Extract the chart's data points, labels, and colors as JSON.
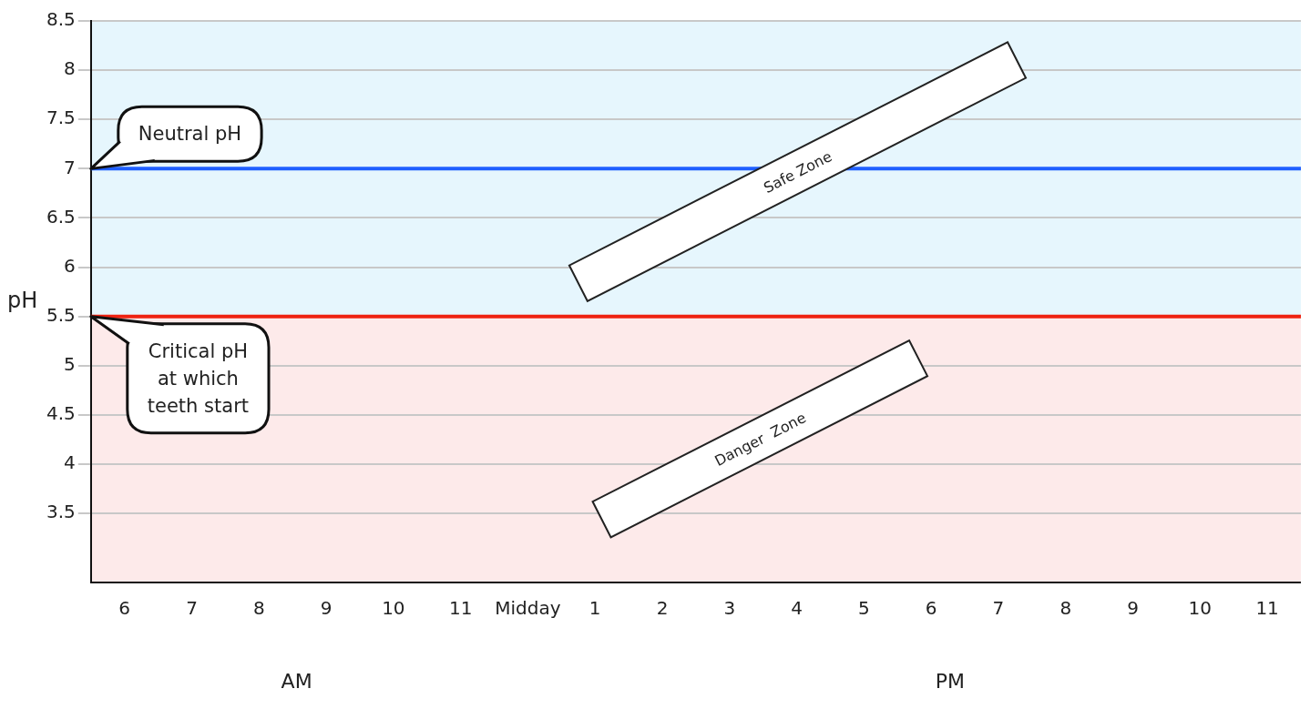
{
  "chart_data": {
    "type": "line",
    "ylabel": "pH",
    "categories": [
      "6",
      "7",
      "8",
      "9",
      "10",
      "11",
      "Midday",
      "1",
      "2",
      "3",
      "4",
      "5",
      "6",
      "7",
      "8",
      "9",
      "10",
      "11"
    ],
    "ylim": [
      2.8,
      8.5
    ],
    "yticks": [
      3.5,
      4,
      4.5,
      5,
      5.5,
      6,
      6.5,
      7,
      7.5,
      8,
      8.5
    ],
    "grid": "y",
    "legend": false,
    "ref_lines": [
      {
        "axis": "y",
        "value": 7,
        "label": "Neutral pH",
        "color": "#1f5fff"
      },
      {
        "axis": "y",
        "value": 5.5,
        "label": "Critical pH at which teeth start",
        "color": "#ee2211"
      }
    ],
    "bands": [
      {
        "axis": "y",
        "from": 5.5,
        "to": 8.5,
        "label": "Safe Zone",
        "color": "#e6f6fd"
      },
      {
        "axis": "y",
        "from": 2.8,
        "to": 5.5,
        "label": "Danger  Zone",
        "color": "#fdeaea"
      }
    ],
    "annotations": [
      "AM",
      "PM"
    ]
  }
}
